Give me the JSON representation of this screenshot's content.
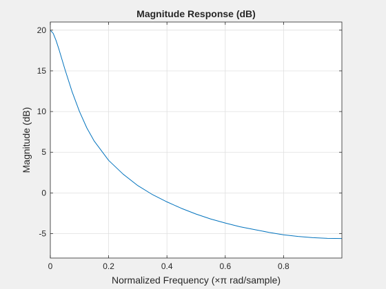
{
  "chart_data": {
    "type": "line",
    "title": "Magnitude Response (dB)",
    "xlabel": "Normalized Frequency (×π rad/sample)",
    "ylabel": "Magnitude (dB)",
    "xlim": [
      0,
      1
    ],
    "ylim": [
      -8,
      21
    ],
    "xticks": [
      0,
      0.2,
      0.4,
      0.6,
      0.8
    ],
    "xtick_labels": [
      "0",
      "0.2",
      "0.4",
      "0.6",
      "0.8"
    ],
    "yticks": [
      -5,
      0,
      5,
      10,
      15,
      20
    ],
    "ytick_labels": [
      "-5",
      "0",
      "5",
      "10",
      "15",
      "20"
    ],
    "grid": true,
    "series": [
      {
        "color": "#0072bd",
        "x": [
          0,
          0.01,
          0.02,
          0.03,
          0.05,
          0.075,
          0.1,
          0.125,
          0.15,
          0.2,
          0.25,
          0.3,
          0.35,
          0.4,
          0.45,
          0.5,
          0.55,
          0.6,
          0.65,
          0.7,
          0.75,
          0.8,
          0.85,
          0.9,
          0.95,
          1.0
        ],
        "y": [
          20,
          19.6,
          18.7,
          17.6,
          15.2,
          12.4,
          10.0,
          8.0,
          6.4,
          4.0,
          2.3,
          0.9,
          -0.2,
          -1.1,
          -1.9,
          -2.6,
          -3.2,
          -3.7,
          -4.15,
          -4.5,
          -4.85,
          -5.15,
          -5.35,
          -5.5,
          -5.58,
          -5.6
        ]
      }
    ]
  }
}
